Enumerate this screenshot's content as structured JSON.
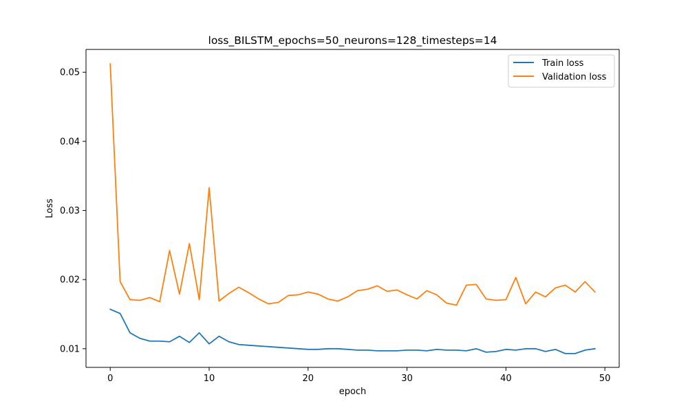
{
  "chart_data": {
    "type": "line",
    "title": "loss_BILSTM_epochs=50_neurons=128_timesteps=14",
    "xlabel": "epoch",
    "ylabel": "Loss",
    "xlim": [
      -2.45,
      51.45
    ],
    "ylim": [
      0.0073,
      0.0533
    ],
    "xticks": [
      0,
      10,
      20,
      30,
      40,
      50
    ],
    "yticks": [
      0.01,
      0.02,
      0.03,
      0.04,
      0.05
    ],
    "xtick_labels": [
      "0",
      "10",
      "20",
      "30",
      "40",
      "50"
    ],
    "ytick_labels": [
      "0.01",
      "0.02",
      "0.03",
      "0.04",
      "0.05"
    ],
    "grid": false,
    "legend_position": "top-right",
    "x": [
      0,
      1,
      2,
      3,
      4,
      5,
      6,
      7,
      8,
      9,
      10,
      11,
      12,
      13,
      14,
      15,
      16,
      17,
      18,
      19,
      20,
      21,
      22,
      23,
      24,
      25,
      26,
      27,
      28,
      29,
      30,
      31,
      32,
      33,
      34,
      35,
      36,
      37,
      38,
      39,
      40,
      41,
      42,
      43,
      44,
      45,
      46,
      47,
      48,
      49
    ],
    "series": [
      {
        "name": "Train loss",
        "color": "#1f77b4",
        "values": [
          0.0157,
          0.0151,
          0.0123,
          0.0115,
          0.0111,
          0.0111,
          0.011,
          0.0118,
          0.0109,
          0.0123,
          0.0107,
          0.0118,
          0.011,
          0.0106,
          0.0105,
          0.0104,
          0.0103,
          0.0102,
          0.0101,
          0.01,
          0.0099,
          0.0099,
          0.01,
          0.01,
          0.0099,
          0.0098,
          0.0098,
          0.0097,
          0.0097,
          0.0097,
          0.0098,
          0.0098,
          0.0097,
          0.0099,
          0.0098,
          0.0098,
          0.0097,
          0.01,
          0.0095,
          0.0096,
          0.0099,
          0.0098,
          0.01,
          0.01,
          0.0096,
          0.0099,
          0.0093,
          0.0093,
          0.0098,
          0.01
        ]
      },
      {
        "name": "Validation loss",
        "color": "#ff7f0e",
        "values": [
          0.0512,
          0.0197,
          0.0171,
          0.017,
          0.0174,
          0.0168,
          0.0242,
          0.0179,
          0.0252,
          0.0171,
          0.0333,
          0.0169,
          0.018,
          0.0189,
          0.0181,
          0.0172,
          0.0165,
          0.0167,
          0.0177,
          0.0178,
          0.0182,
          0.0179,
          0.0172,
          0.0169,
          0.0175,
          0.0184,
          0.0186,
          0.0191,
          0.0183,
          0.0185,
          0.0178,
          0.0172,
          0.0184,
          0.0178,
          0.0166,
          0.0163,
          0.0192,
          0.0193,
          0.0172,
          0.017,
          0.0171,
          0.0203,
          0.0165,
          0.0182,
          0.0175,
          0.0188,
          0.0192,
          0.0182,
          0.0197,
          0.0182
        ]
      }
    ]
  }
}
